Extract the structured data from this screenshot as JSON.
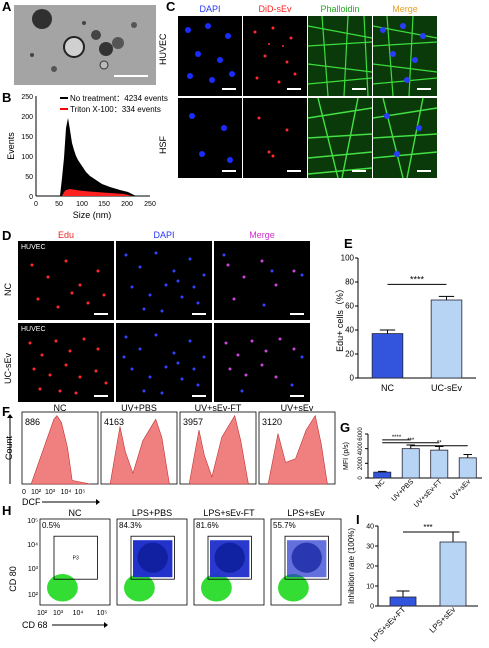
{
  "panels": {
    "a": "A",
    "b": "B",
    "c": "C",
    "d": "D",
    "e": "E",
    "f": "F",
    "g": "G",
    "h": "H",
    "i": "I"
  },
  "colors": {
    "dapi": "#2233ff",
    "did": "#ff2222",
    "phalloidin": "#22aa22",
    "merge": "#e8a020",
    "edu": "#ee2222",
    "edu_merge": "#cc33cc",
    "hist_fill": "#f08080",
    "bar_blue": "#3355dd",
    "bar_light": "#b8d4f4"
  },
  "panel_b": {
    "legend": [
      {
        "label": "No treatment：4234 events",
        "color": "#000000"
      },
      {
        "label": "Triton X-100：334 events",
        "color": "#ff0000"
      }
    ],
    "ylabel": "Events",
    "xlabel": "Size (nm)",
    "yticks": [
      "0",
      "50",
      "100",
      "150",
      "200",
      "250"
    ],
    "xticks": [
      "0",
      "50",
      "100",
      "150",
      "200",
      "250"
    ]
  },
  "panel_c": {
    "columns": [
      "DAPI",
      "DiD-sEv",
      "Phalloidin",
      "Merge"
    ],
    "rows": [
      "HUVEC",
      "HSF"
    ]
  },
  "panel_d": {
    "columns": [
      "Edu",
      "DAPI",
      "Merge"
    ],
    "rows": [
      "NC",
      "UC-sEv"
    ],
    "cell_label": "HUVEC"
  },
  "chart_data": [
    {
      "type": "bar",
      "panel": "E",
      "categories": [
        "NC",
        "UC-sEv"
      ],
      "values": [
        37,
        65
      ],
      "errors": [
        3,
        3
      ],
      "ylabel": "Edu+ cells（%）",
      "ylim": [
        0,
        100
      ],
      "yticks": [
        "0",
        "20",
        "40",
        "60",
        "80",
        "100"
      ],
      "significance": "****"
    },
    {
      "type": "bar",
      "panel": "G",
      "categories": [
        "NC",
        "UV+PBS",
        "UV+sEv-FT",
        "UV+sEv"
      ],
      "values": [
        800,
        4000,
        3800,
        2750
      ],
      "errors": [
        100,
        500,
        500,
        450
      ],
      "ylabel": "MFI (p/s)",
      "ylim": [
        0,
        6000
      ],
      "yticks": [
        "0",
        "2000",
        "4000",
        "6000"
      ],
      "significance": [
        "****",
        "***",
        "**"
      ]
    },
    {
      "type": "bar",
      "panel": "I",
      "categories": [
        "LPS+sEv-FT",
        "LPS+sEv"
      ],
      "values": [
        4.5,
        32
      ],
      "errors": [
        3,
        5
      ],
      "ylabel": "Inhibition rate (100%)",
      "ylim": [
        0,
        40
      ],
      "yticks": [
        "0",
        "10",
        "20",
        "30",
        "40"
      ],
      "significance": "***"
    }
  ],
  "panel_f": {
    "titles": [
      "NC",
      "UV+PBS",
      "UV+sEv-FT",
      "UV+sEv"
    ],
    "counts": [
      "886",
      "4163",
      "3957",
      "3120"
    ],
    "ylabel": "Count",
    "xlabel": "DCF",
    "xticks": [
      "0",
      "10²",
      "10³",
      "10⁴",
      "10⁵"
    ]
  },
  "panel_h": {
    "titles": [
      "NC",
      "LPS+PBS",
      "LPS+sEv-FT",
      "LPS+sEv"
    ],
    "percents": [
      "0.5%",
      "84.3%",
      "81.6%",
      "55.7%"
    ],
    "gate": "P3",
    "ylabel": "CD 80",
    "xlabel": "CD 68",
    "yticks": [
      "10⁵",
      "10⁴",
      "10³",
      "10²"
    ],
    "xticks": [
      "10²",
      "10³",
      "10⁴",
      "10⁵"
    ]
  }
}
